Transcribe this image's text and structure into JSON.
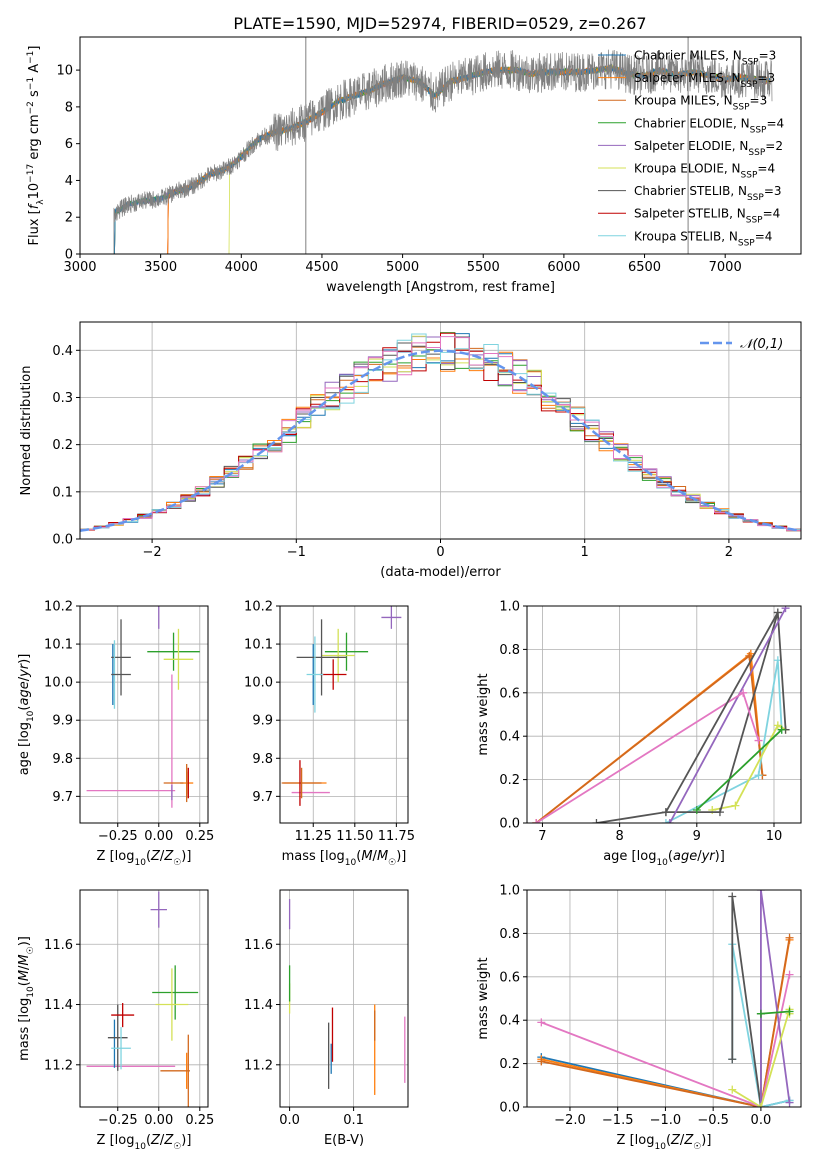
{
  "figure_title": "PLATE=1590, MJD=52974, FIBERID=0529, z=0.267",
  "models": [
    {
      "name": "Chabrier MILES",
      "nssp": "3",
      "color": "#1f77b4"
    },
    {
      "name": "Salpeter MILES",
      "nssp": "3",
      "color": "#ff7f0e"
    },
    {
      "name": "Kroupa MILES",
      "nssp": "3",
      "color": "#d2691e"
    },
    {
      "name": "Chabrier ELODIE",
      "nssp": "4",
      "color": "#2ca02c"
    },
    {
      "name": "Salpeter ELODIE",
      "nssp": "2",
      "color": "#9467bd"
    },
    {
      "name": "Kroupa ELODIE",
      "nssp": "4",
      "color": "#d4e157"
    },
    {
      "name": "Chabrier STELIB",
      "nssp": "3",
      "color": "#555555"
    },
    {
      "name": "Salpeter STELIB",
      "nssp": "4",
      "color": "#c00000"
    },
    {
      "name": "Kroupa STELIB",
      "nssp": "4",
      "color": "#7fd3df"
    }
  ],
  "nssp_label": "N",
  "nssp_sub": "SSP",
  "chart_data": [
    {
      "id": "spectrum",
      "type": "line",
      "xlabel": "wavelength [Angstrom, rest frame]",
      "ylabel": "Flux [f_λ 10^-17 erg cm^-2 s^-1 A^-1]",
      "xlim": [
        3000,
        7470
      ],
      "ylim": [
        0,
        11.8
      ],
      "xticks": [
        3000,
        3500,
        4000,
        4500,
        5000,
        5500,
        6000,
        6500,
        7000
      ],
      "yticks": [
        0,
        2,
        4,
        6,
        8,
        10
      ],
      "legend": "upper right",
      "data_x": [
        3210,
        3300,
        3400,
        3500,
        3600,
        3700,
        3800,
        3900,
        3950,
        4000,
        4100,
        4200,
        4300,
        4400,
        4500,
        4600,
        4700,
        4800,
        4900,
        5000,
        5100,
        5200,
        5300,
        5400,
        5500,
        5600,
        5700,
        5800,
        5900,
        6000,
        6100,
        6200,
        6300,
        6400,
        6500,
        6600,
        6700,
        6800,
        6900,
        7000,
        7100,
        7200,
        7300
      ],
      "data_y": [
        2.2,
        2.7,
        2.9,
        3.0,
        3.4,
        3.7,
        4.3,
        4.6,
        4.9,
        5.3,
        6.2,
        6.6,
        6.8,
        7.2,
        7.7,
        8.3,
        8.6,
        8.9,
        9.3,
        9.6,
        9.4,
        8.6,
        9.4,
        9.6,
        9.9,
        10.0,
        10.0,
        9.8,
        9.9,
        9.9,
        9.9,
        10.0,
        10.1,
        9.8,
        9.7,
        10.0,
        9.7,
        9.9,
        9.7,
        9.5,
        9.6,
        9.5,
        9.4
      ],
      "model_starts": [
        3210,
        3540,
        3540,
        3210,
        3210,
        3920,
        3210,
        3540,
        3210
      ],
      "model_ends": [
        7280,
        7280,
        7280,
        7280,
        7280,
        7280,
        7280,
        7280,
        7280
      ],
      "lines": [
        4400,
        6770
      ]
    },
    {
      "id": "residuals",
      "type": "step",
      "xlabel": "(data-model)/error",
      "ylabel": "Normed distribution",
      "xlim": [
        -2.5,
        2.5
      ],
      "ylim": [
        0,
        0.46
      ],
      "xticks": [
        -2,
        -1,
        0,
        1,
        2
      ],
      "yticks": [
        0.0,
        0.1,
        0.2,
        0.3,
        0.4
      ],
      "reference": {
        "name": "𝒩(0,1)",
        "mean": 0,
        "sigma": 1,
        "color": "#6495ed"
      },
      "legend": "upper right"
    },
    {
      "id": "age_vs_Z",
      "type": "errorbar",
      "xlabel": "Z [log10(Z/Z☉)]",
      "ylabel": "age [log10(age/yr)]",
      "xlim": [
        -0.48,
        0.3
      ],
      "ylim": [
        9.63,
        10.2
      ],
      "xticks": [
        -0.25,
        0.0,
        0.25
      ],
      "yticks": [
        9.7,
        9.8,
        9.9,
        10.0,
        10.1,
        10.2
      ],
      "points": [
        {
          "m": 0,
          "x": -0.28,
          "y": 10.02,
          "xerr": 0.0,
          "yerr": 0.08
        },
        {
          "m": 1,
          "x": 0.17,
          "y": 9.735,
          "xerr": 0.04,
          "yerr": 0.03
        },
        {
          "m": 2,
          "x": 0.17,
          "y": 9.735,
          "xerr": 0.0,
          "yerr": 0.05
        },
        {
          "m": 3,
          "x": 0.09,
          "y": 10.08,
          "xerr": 0.16,
          "yerr": 0.05
        },
        {
          "m": 4,
          "x": 0.0,
          "y": 10.17,
          "xerr": 0.0,
          "yerr": 0.03
        },
        {
          "m": 5,
          "x": 0.12,
          "y": 10.06,
          "xerr": 0.09,
          "yerr": 0.08
        },
        {
          "m": 6,
          "x": -0.23,
          "y": 10.065,
          "xerr": 0.06,
          "yerr": 0.1
        },
        {
          "m": 7,
          "x": 0.18,
          "y": 9.735,
          "xerr": 0.0,
          "yerr": 0.04
        },
        {
          "m": 8,
          "x": -0.27,
          "y": 10.02,
          "xerr": 0.0,
          "yerr": 0.09
        },
        {
          "m": 2,
          "x": 0.09,
          "y": 9.735,
          "xerr": 0.06,
          "yerr": 0.0
        },
        {
          "m": 6,
          "x": -0.23,
          "y": 10.02,
          "xerr": 0.06,
          "yerr": 0.0
        },
        {
          "m": 4,
          "x": 0.08,
          "y": 9.71,
          "xerr": 0.0,
          "yerr": 0.02
        }
      ],
      "extra_lines": [
        {
          "color": "#e377c2",
          "x1": -0.44,
          "y1": 9.715,
          "x2": 0.1,
          "y2": 9.715
        },
        {
          "color": "#e377c2",
          "x1": 0.08,
          "y1": 9.67,
          "x2": 0.08,
          "y2": 10.02
        }
      ]
    },
    {
      "id": "age_vs_mass",
      "type": "errorbar",
      "xlabel": "mass [log10(M/M☉)]",
      "ylabel": "",
      "xlim": [
        11.05,
        11.82
      ],
      "ylim": [
        9.63,
        10.2
      ],
      "xticks": [
        11.25,
        11.5,
        11.75
      ],
      "yticks": [
        9.7,
        9.8,
        9.9,
        10.0,
        10.1,
        10.2
      ],
      "points": [
        {
          "m": 0,
          "x": 11.25,
          "y": 10.02,
          "xerr": 0.0,
          "yerr": 0.08
        },
        {
          "m": 1,
          "x": 11.2,
          "y": 9.735,
          "xerr": 0.13,
          "yerr": 0.0
        },
        {
          "m": 2,
          "x": 11.18,
          "y": 9.735,
          "xerr": 0.12,
          "yerr": 0.04
        },
        {
          "m": 3,
          "x": 11.45,
          "y": 10.08,
          "xerr": 0.13,
          "yerr": 0.05
        },
        {
          "m": 4,
          "x": 11.72,
          "y": 10.17,
          "xerr": 0.06,
          "yerr": 0.03
        },
        {
          "m": 5,
          "x": 11.4,
          "y": 10.07,
          "xerr": 0.1,
          "yerr": 0.07
        },
        {
          "m": 6,
          "x": 11.3,
          "y": 10.065,
          "xerr": 0.15,
          "yerr": 0.1
        },
        {
          "m": 7,
          "x": 11.37,
          "y": 10.02,
          "xerr": 0.08,
          "yerr": 0.04
        },
        {
          "m": 8,
          "x": 11.26,
          "y": 10.02,
          "xerr": 0.05,
          "yerr": 0.1
        },
        {
          "m": 7,
          "x": 11.17,
          "y": 9.735,
          "xerr": 0.0,
          "yerr": 0.06
        }
      ],
      "extra_lines": [
        {
          "color": "#e377c2",
          "x1": 11.12,
          "y1": 9.71,
          "x2": 11.35,
          "y2": 9.71
        }
      ]
    },
    {
      "id": "weight_vs_age",
      "type": "line",
      "xlabel": "age  [log10(age/yr)]",
      "ylabel": "mass weight",
      "xlim": [
        6.8,
        10.35
      ],
      "ylim": [
        0,
        1.0
      ],
      "xticks": [
        7,
        8,
        9,
        10
      ],
      "yticks": [
        0.0,
        0.2,
        0.4,
        0.6,
        0.8,
        1.0
      ],
      "series": [
        {
          "m": 1,
          "x": [
            6.92,
            9.7,
            9.85
          ],
          "y": [
            0.0,
            0.78,
            0.22
          ]
        },
        {
          "m": 2,
          "x": [
            6.92,
            9.68,
            9.85
          ],
          "y": [
            0.0,
            0.77,
            0.22
          ]
        },
        {
          "m": 8,
          "x": [
            8.6,
            9.8,
            10.05,
            10.1
          ],
          "y": [
            0.0,
            0.22,
            0.75,
            0.43
          ]
        },
        {
          "m": 5,
          "x": [
            9.2,
            9.5,
            10.05,
            10.15
          ],
          "y": [
            0.06,
            0.08,
            0.45,
            0.43
          ]
        },
        {
          "m": 6,
          "x": [
            8.6,
            9.3,
            10.05,
            10.15
          ],
          "y": [
            0.05,
            0.05,
            0.97,
            0.43
          ]
        },
        {
          "m": 4,
          "x": [
            8.65,
            10.15
          ],
          "y": [
            0.0,
            0.99
          ]
        },
        {
          "m": 3,
          "x": [
            9.0,
            10.1
          ],
          "y": [
            0.06,
            0.43
          ]
        },
        {
          "m": 9,
          "x": [
            6.92,
            9.6,
            9.8
          ],
          "y": [
            0.0,
            0.6,
            0.38
          ]
        },
        {
          "m": 6,
          "x": [
            7.7,
            8.6,
            10.05
          ],
          "y": [
            0.0,
            0.05,
            0.97
          ]
        }
      ]
    },
    {
      "id": "mass_vs_Z",
      "type": "errorbar",
      "xlabel": "Z [log10(Z/Z☉)]",
      "ylabel": "mass [log10(M/M☉)]",
      "xlim": [
        -0.48,
        0.3
      ],
      "ylim": [
        11.06,
        11.78
      ],
      "xticks": [
        -0.25,
        0.0,
        0.25
      ],
      "yticks": [
        11.2,
        11.4,
        11.6
      ],
      "points": [
        {
          "m": 0,
          "x": -0.27,
          "y": 11.27,
          "xerr": 0.0,
          "yerr": 0.08
        },
        {
          "m": 1,
          "x": 0.17,
          "y": 11.18,
          "xerr": 0.0,
          "yerr": 0.06
        },
        {
          "m": 2,
          "x": 0.1,
          "y": 11.18,
          "xerr": 0.09,
          "yerr": 0.0
        },
        {
          "m": 3,
          "x": 0.1,
          "y": 11.44,
          "xerr": 0.14,
          "yerr": 0.09
        },
        {
          "m": 4,
          "x": 0.0,
          "y": 11.715,
          "xerr": 0.05,
          "yerr": 0.06
        },
        {
          "m": 5,
          "x": 0.08,
          "y": 11.4,
          "xerr": 0.1,
          "yerr": 0.12
        },
        {
          "m": 6,
          "x": -0.25,
          "y": 11.29,
          "xerr": 0.06,
          "yerr": 0.11
        },
        {
          "m": 7,
          "x": -0.22,
          "y": 11.365,
          "xerr": 0.07,
          "yerr": 0.04
        },
        {
          "m": 8,
          "x": -0.23,
          "y": 11.255,
          "xerr": 0.06,
          "yerr": 0.07
        },
        {
          "m": 2,
          "x": 0.18,
          "y": 11.18,
          "xerr": 0.0,
          "yerr": 0.12
        }
      ],
      "extra_lines": [
        {
          "color": "#e377c2",
          "x1": -0.44,
          "y1": 11.195,
          "x2": 0.1,
          "y2": 11.195
        }
      ]
    },
    {
      "id": "mass_vs_ebv",
      "type": "errorbar",
      "xlabel": "E(B-V)",
      "ylabel": "",
      "xlim": [
        -0.015,
        0.185
      ],
      "ylim": [
        11.06,
        11.78
      ],
      "xticks": [
        0.0,
        0.1
      ],
      "yticks": [
        11.2,
        11.4,
        11.6
      ],
      "points": [
        {
          "m": 4,
          "x": 0.0,
          "y": 11.7,
          "xerr": 0.0,
          "yerr": 0.05
        },
        {
          "m": 5,
          "x": 0.0,
          "y": 11.42,
          "xerr": 0.0,
          "yerr": 0.05
        },
        {
          "m": 3,
          "x": 0.0,
          "y": 11.47,
          "xerr": 0.0,
          "yerr": 0.06
        },
        {
          "m": 6,
          "x": 0.061,
          "y": 11.23,
          "xerr": 0.0,
          "yerr": 0.11
        },
        {
          "m": 0,
          "x": 0.065,
          "y": 11.22,
          "xerr": 0.0,
          "yerr": 0.05
        },
        {
          "m": 7,
          "x": 0.067,
          "y": 11.3,
          "xerr": 0.0,
          "yerr": 0.09
        },
        {
          "m": 1,
          "x": 0.133,
          "y": 11.25,
          "xerr": 0.0,
          "yerr": 0.15
        },
        {
          "m": 2,
          "x": 0.133,
          "y": 11.33,
          "xerr": 0.0,
          "yerr": 0.05
        },
        {
          "m": 9,
          "x": 0.18,
          "y": 11.25,
          "xerr": 0.0,
          "yerr": 0.11
        }
      ],
      "extra_lines": []
    },
    {
      "id": "weight_vs_Z",
      "type": "line",
      "xlabel": "Z [log10(Z/Z☉)]",
      "ylabel": "mass weight",
      "xlim": [
        -2.45,
        0.42
      ],
      "ylim": [
        0,
        1.0
      ],
      "xticks": [
        -2.0,
        -1.5,
        -1.0,
        -0.5,
        0.0
      ],
      "yticks": [
        0.0,
        0.2,
        0.4,
        0.6,
        0.8,
        1.0
      ],
      "series": [
        {
          "m": 0,
          "x": [
            -2.3,
            0.0,
            0.3
          ],
          "y": [
            0.23,
            0.0,
            0.03
          ]
        },
        {
          "m": 1,
          "x": [
            -2.3,
            0.0,
            0.3
          ],
          "y": [
            0.22,
            0.0,
            0.77
          ]
        },
        {
          "m": 2,
          "x": [
            -2.3,
            0.0,
            0.3
          ],
          "y": [
            0.21,
            0.0,
            0.78
          ]
        },
        {
          "m": 9,
          "x": [
            -2.3,
            0.0,
            0.3
          ],
          "y": [
            0.39,
            0.0,
            0.61
          ]
        },
        {
          "m": 8,
          "x": [
            -0.3,
            -0.3,
            0.0,
            0.3
          ],
          "y": [
            0.22,
            0.75,
            0.0,
            0.03
          ]
        },
        {
          "m": 6,
          "x": [
            -0.3,
            -0.3,
            0.0,
            0.0
          ],
          "y": [
            0.22,
            0.97,
            0.0,
            0.43
          ]
        },
        {
          "m": 4,
          "x": [
            0.0,
            0.0,
            0.3
          ],
          "y": [
            0.0,
            1.0,
            0.02
          ]
        },
        {
          "m": 5,
          "x": [
            -0.3,
            0.0,
            0.3,
            0.3
          ],
          "y": [
            0.08,
            0.0,
            0.45,
            0.43
          ]
        },
        {
          "m": 3,
          "x": [
            0.0,
            0.3
          ],
          "y": [
            0.43,
            0.44
          ]
        }
      ]
    }
  ],
  "extra_colors": {
    "m9": "#e377c2"
  }
}
